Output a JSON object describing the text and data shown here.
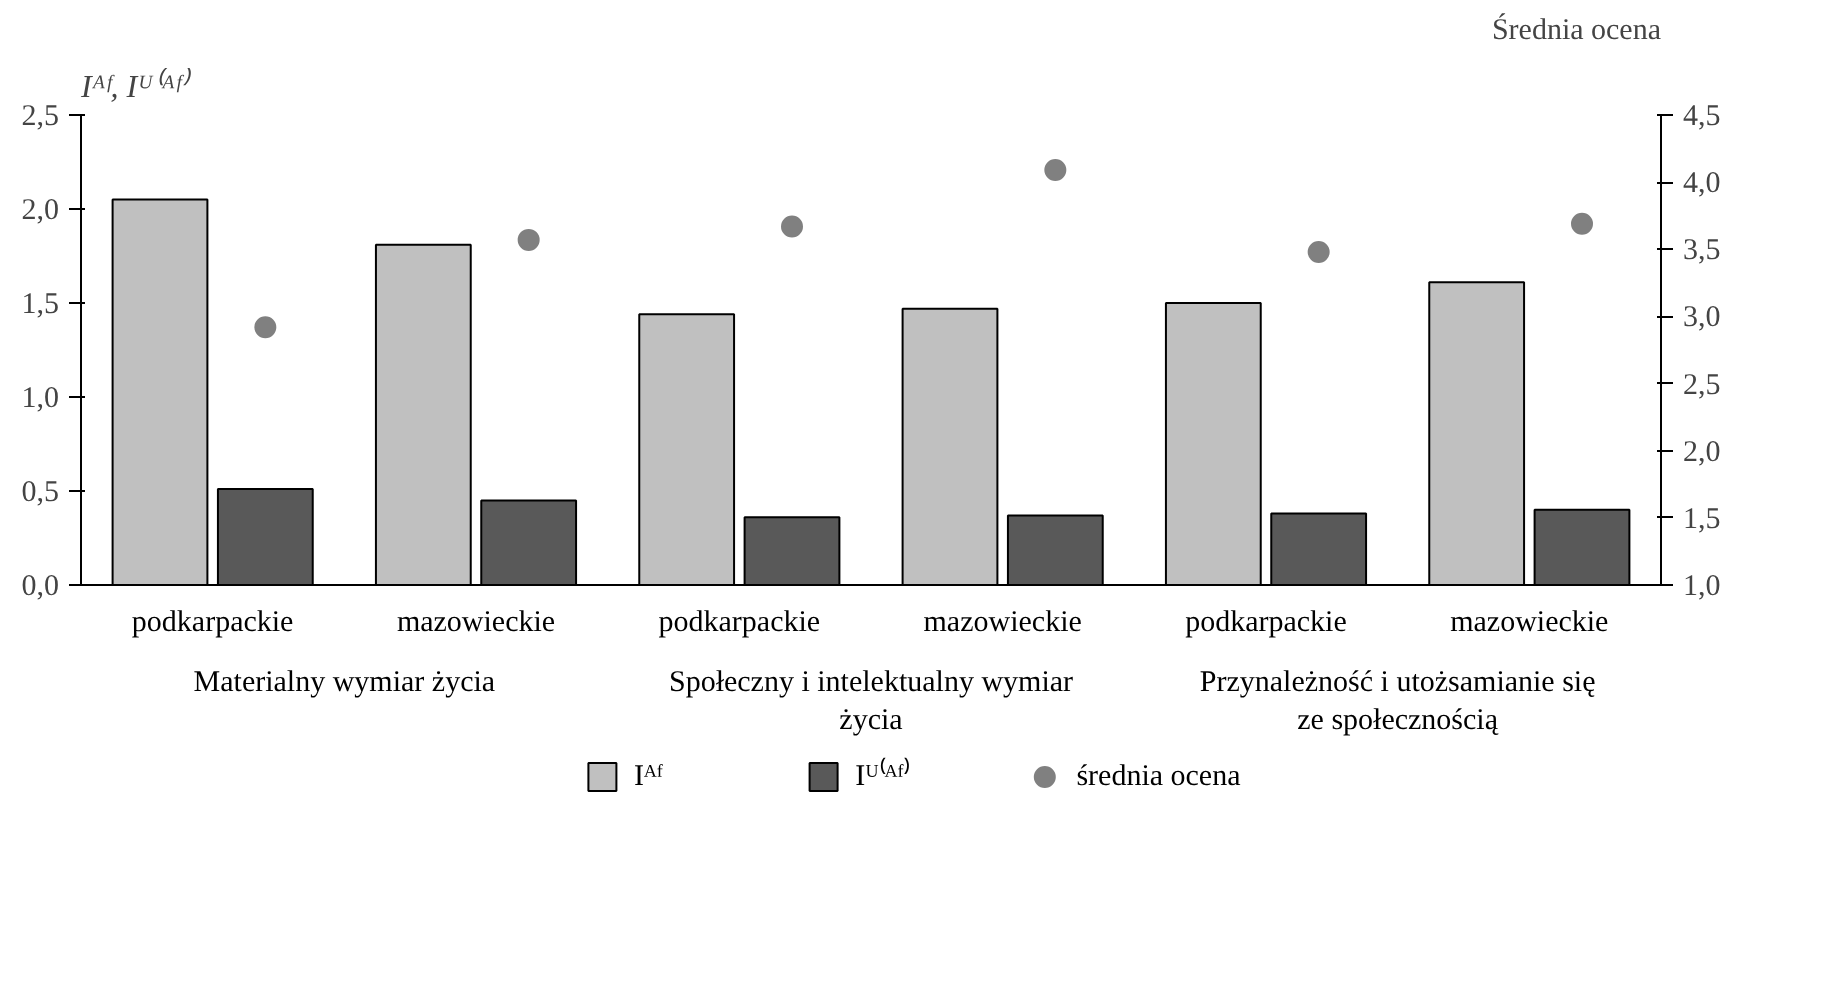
{
  "chart_data": {
    "type": "bar",
    "ylabel": "Iᴬᶠ, Iᵁ⁽ᴬᶠ⁾",
    "y2label": "Średnia ocena",
    "categories": [
      "podkarpackie",
      "mazowieckie",
      "podkarpackie",
      "mazowieckie",
      "podkarpackie",
      "mazowieckie"
    ],
    "annotations": [
      "Materialny wymiar życia",
      "Społeczny i intelektualny wymiar życia",
      "Przynależność i utożsamianie się ze społecznością"
    ],
    "series": [
      {
        "name": "Iᴬᶠ",
        "color": "#c0c0c0",
        "values": [
          2.05,
          1.81,
          1.44,
          1.47,
          1.5,
          1.61
        ]
      },
      {
        "name": "Iᵁ⁽ᴬᶠ⁾",
        "color": "#595959",
        "values": [
          0.51,
          0.45,
          0.36,
          0.37,
          0.38,
          0.4
        ]
      },
      {
        "name": "średnia ocena",
        "type": "scatter",
        "axis": "y2",
        "color": "#808080",
        "marker": "circle",
        "values": [
          2.92,
          3.57,
          3.67,
          4.09,
          3.48,
          3.69
        ]
      }
    ],
    "ylim": [
      0,
      2.5
    ],
    "yticks": [
      {
        "value": 0,
        "label": "0,0"
      },
      {
        "value": 0.5,
        "label": "0,5"
      },
      {
        "value": 1,
        "label": "1,0"
      },
      {
        "value": 1.5,
        "label": "1,5"
      },
      {
        "value": 2,
        "label": "2,0"
      },
      {
        "value": 2.5,
        "label": "2,5"
      }
    ],
    "y2lim": [
      1,
      4.5
    ],
    "y2ticks": [
      {
        "value": 1,
        "label": "1,0"
      },
      {
        "value": 1.5,
        "label": "1,5"
      },
      {
        "value": 2,
        "label": "2,0"
      },
      {
        "value": 2.5,
        "label": "2,5"
      },
      {
        "value": 3,
        "label": "3,0"
      },
      {
        "value": 3.5,
        "label": "3,5"
      },
      {
        "value": 4,
        "label": "4,0"
      },
      {
        "value": 4.5,
        "label": "4,5"
      }
    ],
    "grid": false,
    "legend": "bottom"
  }
}
